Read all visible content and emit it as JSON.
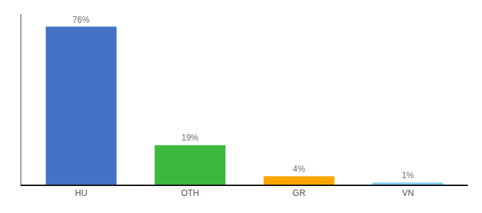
{
  "chart_data": {
    "type": "bar",
    "categories": [
      "HU",
      "OTH",
      "GR",
      "VN"
    ],
    "values": [
      76,
      19,
      4,
      1
    ],
    "value_labels": [
      "76%",
      "19%",
      "4%",
      "1%"
    ],
    "colors": [
      "#4472C4",
      "#3CB93C",
      "#FFA500",
      "#87CEEB"
    ],
    "ylim": [
      0,
      82
    ],
    "data_labels": true,
    "tick_labels": "x",
    "grid": false
  }
}
